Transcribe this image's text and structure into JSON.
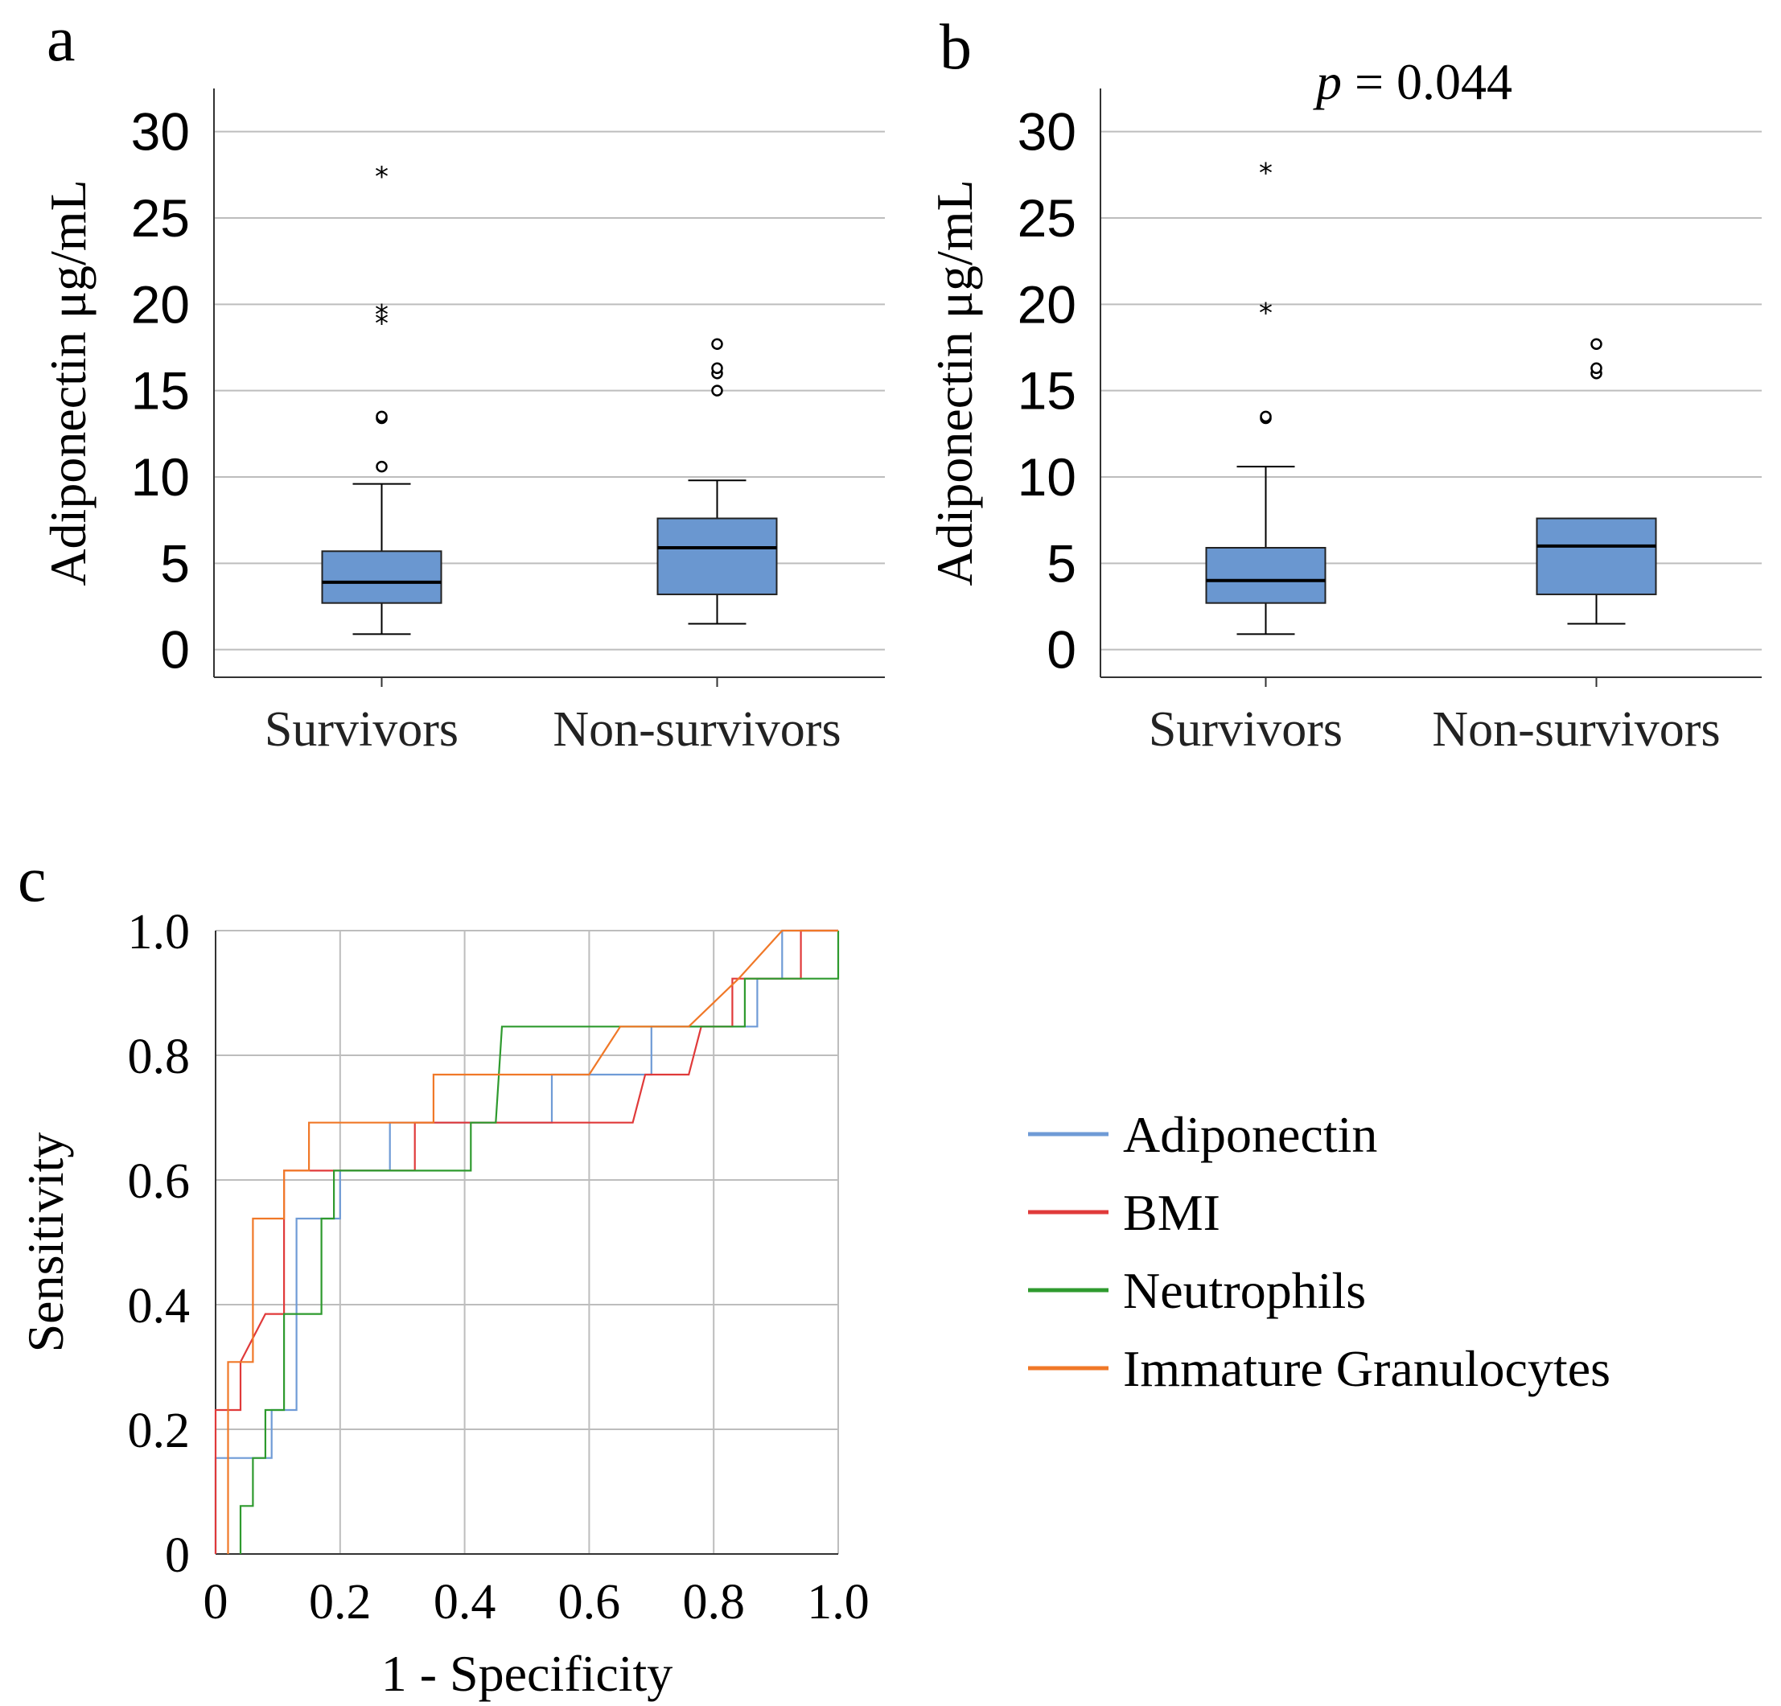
{
  "chart_data": [
    {
      "panel": "a",
      "type": "box",
      "title": "",
      "ylabel": "Adiponectin μg/mL",
      "xlabel": "",
      "ylim": [
        -1.6,
        32.5
      ],
      "yticks": [
        0,
        5,
        10,
        15,
        20,
        25,
        30
      ],
      "grid": true,
      "categories": [
        "Survivors",
        "Non-survivors"
      ],
      "boxes": [
        {
          "category": "Survivors",
          "whisker_low": 0.9,
          "q1": 2.7,
          "median": 3.9,
          "q3": 5.7,
          "whisker_high": 9.6,
          "outliers_circle": [
            10.6,
            13.4,
            13.5
          ],
          "outliers_star": [
            19.3,
            19.8,
            27.8
          ]
        },
        {
          "category": "Non-survivors",
          "whisker_low": 1.5,
          "q1": 3.2,
          "median": 5.9,
          "q3": 7.6,
          "whisker_high": 9.8,
          "outliers_circle": [
            15.0,
            16.0,
            16.3,
            17.7
          ],
          "outliers_star": []
        }
      ]
    },
    {
      "panel": "b",
      "type": "box",
      "title": "p = 0.044",
      "ylabel": "Adiponectin μg/mL",
      "xlabel": "",
      "ylim": [
        -1.6,
        32.5
      ],
      "yticks": [
        0,
        5,
        10,
        15,
        20,
        25,
        30
      ],
      "grid": true,
      "categories": [
        "Survivors",
        "Non-survivors"
      ],
      "boxes": [
        {
          "category": "Survivors",
          "whisker_low": 0.9,
          "q1": 2.7,
          "median": 4.0,
          "q3": 5.9,
          "whisker_high": 10.6,
          "outliers_circle": [
            13.4,
            13.5
          ],
          "outliers_star": [
            19.9,
            28.0
          ]
        },
        {
          "category": "Non-survivors",
          "whisker_low": 1.5,
          "q1": 3.2,
          "median": 6.0,
          "q3": 7.6,
          "whisker_high": 7.6,
          "outliers_circle": [
            16.0,
            16.3,
            17.7
          ],
          "outliers_star": []
        }
      ]
    },
    {
      "panel": "c",
      "type": "line",
      "title": "",
      "xlabel": "1 - Specificity",
      "ylabel": "Sensitivity",
      "xlim": [
        0,
        1
      ],
      "ylim": [
        0,
        1
      ],
      "xticks": [
        "0",
        "0.2",
        "0.4",
        "0.6",
        "0.8",
        "1.0"
      ],
      "yticks": [
        "0",
        "0.2",
        "0.4",
        "0.6",
        "0.8",
        "1.0"
      ],
      "grid": true,
      "legend_position": "right",
      "series": [
        {
          "name": "Adiponectin",
          "color": "#6f9bd6",
          "points": [
            [
              0,
              0
            ],
            [
              0,
              0.154
            ],
            [
              0.09,
              0.154
            ],
            [
              0.09,
              0.231
            ],
            [
              0.13,
              0.231
            ],
            [
              0.13,
              0.538
            ],
            [
              0.2,
              0.538
            ],
            [
              0.2,
              0.615
            ],
            [
              0.28,
              0.615
            ],
            [
              0.28,
              0.692
            ],
            [
              0.54,
              0.692
            ],
            [
              0.54,
              0.769
            ],
            [
              0.7,
              0.769
            ],
            [
              0.7,
              0.846
            ],
            [
              0.87,
              0.846
            ],
            [
              0.87,
              0.923
            ],
            [
              0.91,
              0.923
            ],
            [
              0.91,
              1.0
            ],
            [
              1.0,
              1.0
            ]
          ]
        },
        {
          "name": "BMI",
          "color": "#e03a3a",
          "points": [
            [
              0,
              0
            ],
            [
              0,
              0.231
            ],
            [
              0.04,
              0.231
            ],
            [
              0.04,
              0.308
            ],
            [
              0.08,
              0.385
            ],
            [
              0.11,
              0.385
            ],
            [
              0.11,
              0.615
            ],
            [
              0.32,
              0.615
            ],
            [
              0.32,
              0.692
            ],
            [
              0.67,
              0.692
            ],
            [
              0.69,
              0.769
            ],
            [
              0.76,
              0.769
            ],
            [
              0.78,
              0.846
            ],
            [
              0.83,
              0.846
            ],
            [
              0.83,
              0.923
            ],
            [
              0.94,
              0.923
            ],
            [
              0.94,
              1.0
            ],
            [
              1.0,
              1.0
            ]
          ]
        },
        {
          "name": "Neutrophils",
          "color": "#2e9a2e",
          "points": [
            [
              0.04,
              0
            ],
            [
              0.04,
              0.077
            ],
            [
              0.06,
              0.077
            ],
            [
              0.06,
              0.154
            ],
            [
              0.08,
              0.154
            ],
            [
              0.08,
              0.231
            ],
            [
              0.11,
              0.231
            ],
            [
              0.11,
              0.385
            ],
            [
              0.17,
              0.385
            ],
            [
              0.17,
              0.538
            ],
            [
              0.19,
              0.538
            ],
            [
              0.19,
              0.615
            ],
            [
              0.41,
              0.615
            ],
            [
              0.41,
              0.692
            ],
            [
              0.45,
              0.692
            ],
            [
              0.46,
              0.846
            ],
            [
              0.77,
              0.846
            ],
            [
              0.77,
              0.846
            ],
            [
              0.85,
              0.846
            ],
            [
              0.85,
              0.923
            ],
            [
              1.0,
              0.923
            ],
            [
              1.0,
              1.0
            ]
          ]
        },
        {
          "name": "Immature Granulocytes",
          "color": "#f07828",
          "points": [
            [
              0.02,
              0
            ],
            [
              0.02,
              0.308
            ],
            [
              0.06,
              0.308
            ],
            [
              0.06,
              0.538
            ],
            [
              0.11,
              0.538
            ],
            [
              0.11,
              0.615
            ],
            [
              0.15,
              0.615
            ],
            [
              0.15,
              0.692
            ],
            [
              0.35,
              0.692
            ],
            [
              0.35,
              0.769
            ],
            [
              0.6,
              0.769
            ],
            [
              0.65,
              0.846
            ],
            [
              0.76,
              0.846
            ],
            [
              0.84,
              0.923
            ],
            [
              0.91,
              1.0
            ],
            [
              1.0,
              1.0
            ]
          ]
        }
      ]
    }
  ],
  "labels": {
    "panel_a": "a",
    "panel_b": "b",
    "panel_c": "c",
    "p_italic": "p",
    "p_rest": " = 0.044"
  }
}
